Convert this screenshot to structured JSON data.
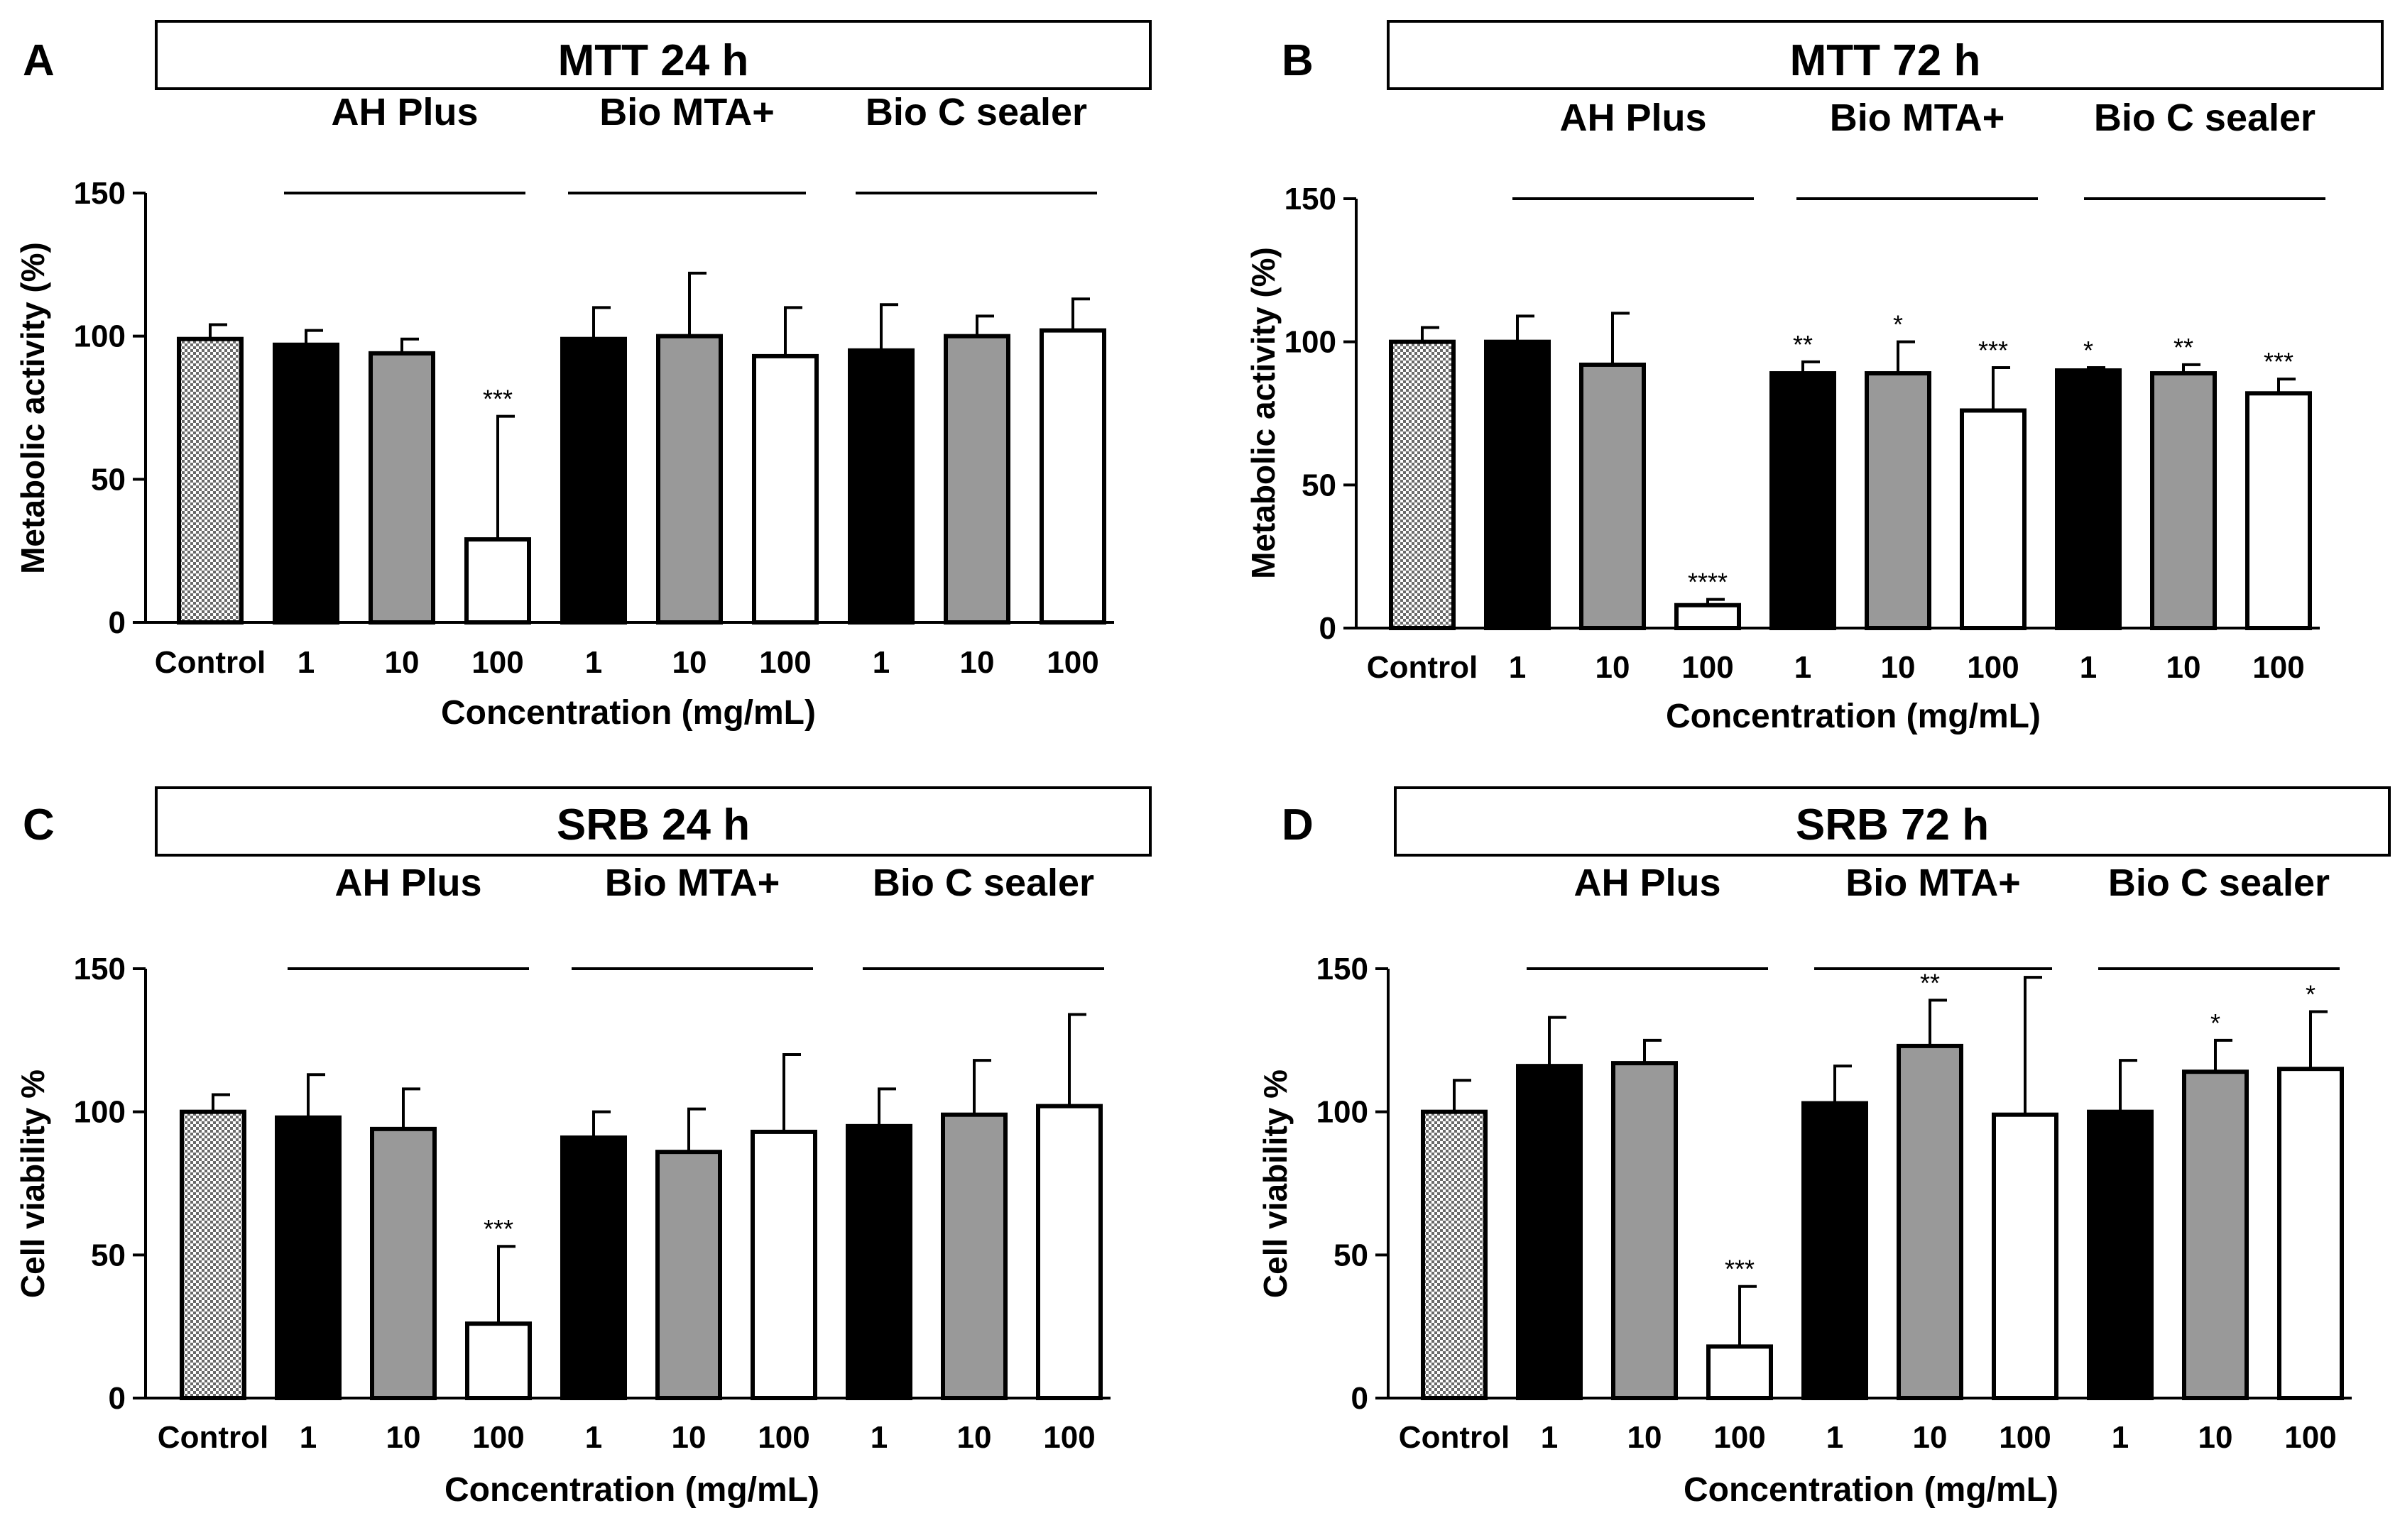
{
  "figure": {
    "concentration_unit": "mg/mL",
    "patterns": {
      "control": "checkered-gray",
      "dose_1": "#000000",
      "dose_10": "#999999",
      "dose_100": "#ffffff"
    }
  },
  "chart_data": [
    {
      "id": "A",
      "letter": "A",
      "type": "bar",
      "title": "MTT 24 h",
      "ylabel": "Metabolic activity (%)",
      "xlabel": "Concentration (mg/mL)",
      "ylim": [
        0,
        150
      ],
      "yticks": [
        "0",
        "50",
        "100",
        "150"
      ],
      "groups": [
        "AH Plus",
        "Bio MTA+",
        "Bio C sealer"
      ],
      "categories": [
        "Control",
        "1",
        "10",
        "100",
        "1",
        "10",
        "100",
        "1",
        "10",
        "100"
      ],
      "values": [
        99,
        97,
        94,
        29,
        99,
        100,
        93,
        95,
        100,
        102
      ],
      "errors": [
        5,
        5,
        5,
        43,
        11,
        22,
        17,
        16,
        7,
        11
      ],
      "significance": [
        "",
        "",
        "",
        "***",
        "",
        "",
        "",
        "",
        "",
        ""
      ]
    },
    {
      "id": "B",
      "letter": "B",
      "type": "bar",
      "title": "MTT 72 h",
      "ylabel": "Metabolic activity (%)",
      "xlabel": "Concentration (mg/mL)",
      "ylim": [
        0,
        150
      ],
      "yticks": [
        "0",
        "50",
        "100",
        "150"
      ],
      "groups": [
        "AH Plus",
        "Bio MTA+",
        "Bio C sealer"
      ],
      "categories": [
        "Control",
        "1",
        "10",
        "100",
        "1",
        "10",
        "100",
        "1",
        "10",
        "100"
      ],
      "values": [
        100,
        100,
        92,
        8,
        89,
        89,
        76,
        90,
        89,
        82
      ],
      "errors": [
        5,
        9,
        18,
        2,
        4,
        11,
        15,
        1,
        3,
        5
      ],
      "significance": [
        "",
        "",
        "",
        "****",
        "**",
        "*",
        "***",
        "*",
        "**",
        "***"
      ]
    },
    {
      "id": "C",
      "letter": "C",
      "type": "bar",
      "title": "SRB 24 h",
      "ylabel": "Cell viability %",
      "xlabel": "Concentration (mg/mL)",
      "ylim": [
        0,
        150
      ],
      "yticks": [
        "0",
        "50",
        "100",
        "150"
      ],
      "groups": [
        "AH Plus",
        "Bio MTA+",
        "Bio C sealer"
      ],
      "categories": [
        "Control",
        "1",
        "10",
        "100",
        "1",
        "10",
        "100",
        "1",
        "10",
        "100"
      ],
      "values": [
        100,
        98,
        94,
        26,
        91,
        86,
        93,
        95,
        99,
        102
      ],
      "errors": [
        6,
        15,
        14,
        27,
        9,
        15,
        27,
        13,
        19,
        32
      ],
      "significance": [
        "",
        "",
        "",
        "***",
        "",
        "",
        "",
        "",
        "",
        ""
      ]
    },
    {
      "id": "D",
      "letter": "D",
      "type": "bar",
      "title": "SRB 72 h",
      "ylabel": "Cell viability %",
      "xlabel": "Concentration (mg/mL)",
      "ylim": [
        0,
        150
      ],
      "yticks": [
        "0",
        "50",
        "100",
        "150"
      ],
      "groups": [
        "AH Plus",
        "Bio MTA+",
        "Bio C sealer"
      ],
      "categories": [
        "Control",
        "1",
        "10",
        "100",
        "1",
        "10",
        "100",
        "1",
        "10",
        "100"
      ],
      "values": [
        100,
        116,
        117,
        18,
        103,
        123,
        99,
        100,
        114,
        115
      ],
      "errors": [
        11,
        17,
        8,
        21,
        13,
        16,
        48,
        18,
        11,
        20
      ],
      "significance": [
        "",
        "",
        "",
        "***",
        "",
        "**",
        "",
        "",
        "*",
        "*"
      ]
    }
  ]
}
